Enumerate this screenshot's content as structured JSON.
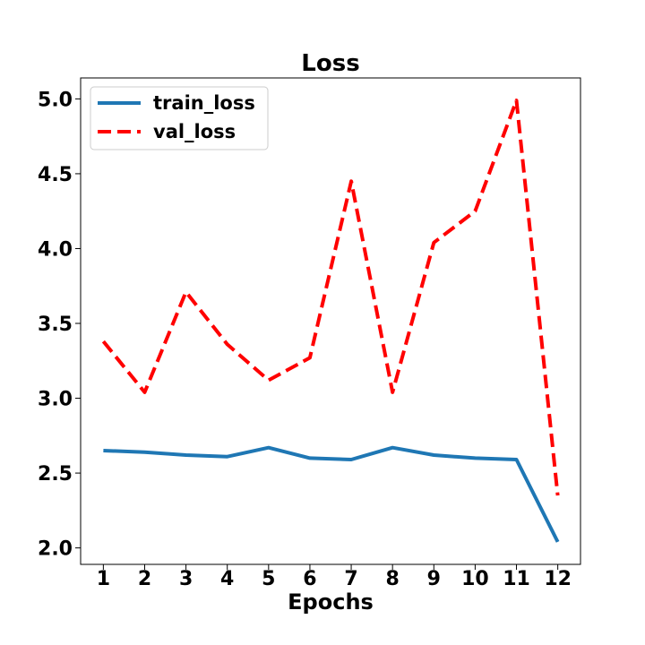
{
  "chart_data": {
    "type": "line",
    "title": "Loss",
    "xlabel": "Epochs",
    "ylabel": "",
    "x": [
      1,
      2,
      3,
      4,
      5,
      6,
      7,
      8,
      9,
      10,
      11,
      12
    ],
    "x_tick_labels": [
      "1",
      "2",
      "3",
      "4",
      "5",
      "6",
      "7",
      "8",
      "9",
      "10",
      "11",
      "12"
    ],
    "y_ticks": [
      2.0,
      2.5,
      3.0,
      3.5,
      4.0,
      4.5,
      5.0
    ],
    "y_tick_labels": [
      "2.0",
      "2.5",
      "3.0",
      "3.5",
      "4.0",
      "4.5",
      "5.0"
    ],
    "ylim": [
      1.89,
      5.14
    ],
    "xlim": [
      0.45,
      12.55
    ],
    "grid": false,
    "legend_position": "top-left",
    "series": [
      {
        "name": "train_loss",
        "color": "#1f77b4",
        "style": "solid",
        "values": [
          2.65,
          2.64,
          2.62,
          2.61,
          2.67,
          2.6,
          2.59,
          2.67,
          2.62,
          2.6,
          2.59,
          2.04
        ]
      },
      {
        "name": "val_loss",
        "color": "#ff0000",
        "style": "dashed",
        "values": [
          3.38,
          3.04,
          3.71,
          3.36,
          3.12,
          3.27,
          4.45,
          3.04,
          4.04,
          4.25,
          4.99,
          2.35
        ]
      }
    ]
  }
}
